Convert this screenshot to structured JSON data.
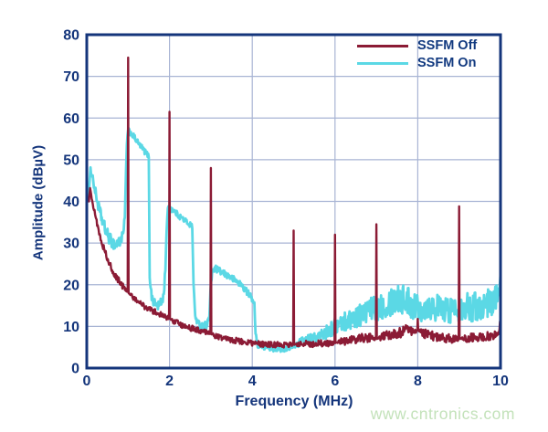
{
  "watermark": {
    "text": "www.cntronics.com",
    "color": "#C3E2BA"
  },
  "colors": {
    "frame": "#14357B",
    "grid": "#A8B4D4",
    "tick_text": "#14357B",
    "background": "#FFFFFF",
    "ssfm_off": "#8B1B35",
    "ssfm_on": "#5BD8E5"
  },
  "chart_data": {
    "type": "line",
    "title": "",
    "xlabel": "Frequency (MHz)",
    "ylabel": "Amplitude (dBµV)",
    "xlim": [
      0,
      10
    ],
    "ylim": [
      0,
      80
    ],
    "xticks": [
      0,
      2,
      4,
      6,
      8,
      10
    ],
    "yticks": [
      0,
      10,
      20,
      30,
      40,
      50,
      60,
      70,
      80
    ],
    "grid": true,
    "legend_position": "top-right",
    "series_note": "points are [frequency_MHz, amplitude_dBuV, noise_half_width_dB]; spikes at harmonics have noise 0",
    "series": [
      {
        "name": "SSFM Off",
        "color": "#8B1B35",
        "width": 2.4,
        "peaks": {
          "1": 74.5,
          "2": 61.5,
          "3": 48,
          "5": 33,
          "6": 32,
          "7": 34.5,
          "8": 11.8,
          "9": 38.8
        },
        "points": [
          [
            0.05,
            40,
            0.4
          ],
          [
            0.08,
            43.5,
            0.3
          ],
          [
            0.12,
            41,
            0.5
          ],
          [
            0.2,
            37,
            0.8
          ],
          [
            0.3,
            32.5,
            0.8
          ],
          [
            0.42,
            28.5,
            0.8
          ],
          [
            0.55,
            25,
            0.8
          ],
          [
            0.7,
            22,
            0.8
          ],
          [
            0.85,
            19.8,
            0.8
          ],
          [
            0.97,
            18.5,
            0.5
          ],
          [
            0.988,
            18.3,
            0
          ],
          [
            1.0,
            74.5,
            0
          ],
          [
            1.012,
            18,
            0
          ],
          [
            1.1,
            17.2,
            0.7
          ],
          [
            1.25,
            16,
            0.7
          ],
          [
            1.4,
            14.8,
            0.7
          ],
          [
            1.55,
            14,
            0.7
          ],
          [
            1.7,
            13.2,
            0.7
          ],
          [
            1.85,
            12.5,
            0.7
          ],
          [
            1.97,
            12,
            0.5
          ],
          [
            1.988,
            12,
            0
          ],
          [
            2.0,
            61.5,
            0
          ],
          [
            2.012,
            11.8,
            0
          ],
          [
            2.1,
            11.3,
            0.7
          ],
          [
            2.25,
            10.5,
            0.7
          ],
          [
            2.4,
            10,
            0.7
          ],
          [
            2.55,
            9.5,
            0.7
          ],
          [
            2.7,
            9,
            0.7
          ],
          [
            2.85,
            8.6,
            0.7
          ],
          [
            2.97,
            8.3,
            0.5
          ],
          [
            2.988,
            8.2,
            0
          ],
          [
            3.0,
            48,
            0
          ],
          [
            3.012,
            8.2,
            0
          ],
          [
            3.1,
            7.8,
            0.7
          ],
          [
            3.3,
            7.2,
            0.7
          ],
          [
            3.5,
            6.8,
            0.7
          ],
          [
            3.7,
            6.4,
            0.7
          ],
          [
            3.9,
            6.1,
            0.7
          ],
          [
            4.1,
            5.9,
            0.7
          ],
          [
            4.35,
            5.7,
            0.7
          ],
          [
            4.6,
            5.6,
            0.7
          ],
          [
            4.85,
            5.6,
            0.7
          ],
          [
            4.97,
            5.6,
            0.4
          ],
          [
            4.988,
            5.6,
            0
          ],
          [
            5.0,
            33,
            0
          ],
          [
            5.012,
            5.6,
            0
          ],
          [
            5.15,
            5.7,
            0.8
          ],
          [
            5.4,
            5.8,
            0.8
          ],
          [
            5.65,
            5.9,
            0.8
          ],
          [
            5.9,
            6,
            0.8
          ],
          [
            5.97,
            6,
            0.4
          ],
          [
            5.988,
            6,
            0
          ],
          [
            6.0,
            32,
            0
          ],
          [
            6.012,
            6,
            0
          ],
          [
            6.15,
            6.3,
            0.9
          ],
          [
            6.4,
            6.8,
            1.0
          ],
          [
            6.65,
            7.2,
            1.1
          ],
          [
            6.9,
            7.2,
            1.0
          ],
          [
            6.97,
            7,
            0.5
          ],
          [
            6.988,
            7,
            0
          ],
          [
            7.0,
            34.5,
            0
          ],
          [
            7.012,
            7,
            0
          ],
          [
            7.15,
            7.5,
            1.1
          ],
          [
            7.4,
            8,
            1.3
          ],
          [
            7.65,
            8.8,
            1.5
          ],
          [
            7.85,
            9,
            1.5
          ],
          [
            7.97,
            9,
            0.8
          ],
          [
            7.988,
            9,
            0
          ],
          [
            8.0,
            11.8,
            0
          ],
          [
            8.012,
            9,
            0
          ],
          [
            8.15,
            8.5,
            1.3
          ],
          [
            8.4,
            7.6,
            1.1
          ],
          [
            8.65,
            7.2,
            1.0
          ],
          [
            8.9,
            7,
            1.0
          ],
          [
            8.97,
            7,
            0.5
          ],
          [
            8.988,
            7,
            0
          ],
          [
            9.0,
            38.8,
            0
          ],
          [
            9.012,
            7,
            0
          ],
          [
            9.15,
            7.2,
            1.0
          ],
          [
            9.4,
            7.4,
            1.0
          ],
          [
            9.65,
            7.6,
            1.0
          ],
          [
            9.85,
            7.8,
            1.0
          ],
          [
            9.95,
            8.2,
            0.9
          ],
          [
            10.0,
            11.5,
            0.5
          ]
        ]
      },
      {
        "name": "SSFM On",
        "color": "#5BD8E5",
        "width": 2.8,
        "humps": {
          "1": 57,
          "2": 38.5,
          "3": 23.8
        },
        "points": [
          [
            0.05,
            42,
            1.0
          ],
          [
            0.09,
            47.5,
            0.7
          ],
          [
            0.13,
            46.5,
            0.8
          ],
          [
            0.2,
            42.5,
            1.3
          ],
          [
            0.3,
            38,
            1.4
          ],
          [
            0.4,
            34.5,
            1.5
          ],
          [
            0.5,
            32,
            1.5
          ],
          [
            0.6,
            30.3,
            1.5
          ],
          [
            0.7,
            29.6,
            1.5
          ],
          [
            0.8,
            30.4,
            1.4
          ],
          [
            0.88,
            32,
            1.2
          ],
          [
            0.92,
            36,
            0.9
          ],
          [
            0.95,
            47,
            0.7
          ],
          [
            0.97,
            54,
            0.6
          ],
          [
            1.0,
            57,
            0.7
          ],
          [
            1.08,
            56.3,
            0.7
          ],
          [
            1.16,
            55.2,
            0.7
          ],
          [
            1.24,
            54,
            0.7
          ],
          [
            1.32,
            53,
            0.7
          ],
          [
            1.4,
            52,
            0.7
          ],
          [
            1.47,
            51.2,
            0.6
          ],
          [
            1.5,
            50.8,
            0.4
          ],
          [
            1.52,
            22,
            0.6
          ],
          [
            1.57,
            17,
            1.2
          ],
          [
            1.64,
            15.5,
            1.2
          ],
          [
            1.72,
            15,
            1.2
          ],
          [
            1.8,
            15.6,
            1.2
          ],
          [
            1.86,
            17.5,
            1.2
          ],
          [
            1.9,
            24,
            0.9
          ],
          [
            1.93,
            33,
            0.8
          ],
          [
            1.96,
            38,
            0.7
          ],
          [
            2.0,
            38.5,
            0.7
          ],
          [
            2.1,
            37.8,
            0.7
          ],
          [
            2.2,
            36.8,
            0.7
          ],
          [
            2.3,
            36,
            0.7
          ],
          [
            2.4,
            35.2,
            0.7
          ],
          [
            2.5,
            34.4,
            0.7
          ],
          [
            2.55,
            34,
            0.5
          ],
          [
            2.58,
            20,
            0.7
          ],
          [
            2.62,
            12.5,
            1.0
          ],
          [
            2.7,
            10.5,
            1.0
          ],
          [
            2.8,
            10,
            1.0
          ],
          [
            2.9,
            10.4,
            1.0
          ],
          [
            2.96,
            12,
            0.9
          ],
          [
            2.99,
            18,
            0.8
          ],
          [
            3.03,
            23.5,
            0.8
          ],
          [
            3.12,
            23.8,
            0.8
          ],
          [
            3.25,
            23,
            0.8
          ],
          [
            3.4,
            22.2,
            0.8
          ],
          [
            3.55,
            21.3,
            0.8
          ],
          [
            3.7,
            20.3,
            0.8
          ],
          [
            3.82,
            19,
            0.8
          ],
          [
            3.93,
            17.6,
            0.8
          ],
          [
            4.02,
            16.2,
            0.6
          ],
          [
            4.05,
            15.8,
            0.4
          ],
          [
            4.08,
            8,
            0.6
          ],
          [
            4.13,
            5.6,
            0.7
          ],
          [
            4.3,
            5,
            0.7
          ],
          [
            4.5,
            4.7,
            0.7
          ],
          [
            4.7,
            4.6,
            0.7
          ],
          [
            4.9,
            4.8,
            0.7
          ],
          [
            5.05,
            5.6,
            0.8
          ],
          [
            5.2,
            6.5,
            1.0
          ],
          [
            5.4,
            7,
            1.1
          ],
          [
            5.6,
            7.6,
            1.3
          ],
          [
            5.8,
            8.6,
            1.6
          ],
          [
            6.0,
            10,
            2.0
          ],
          [
            6.2,
            11,
            2.3
          ],
          [
            6.4,
            12,
            2.5
          ],
          [
            6.6,
            12.8,
            2.8
          ],
          [
            6.8,
            13.6,
            3.0
          ],
          [
            7.0,
            14.5,
            3.2
          ],
          [
            7.2,
            15.5,
            3.5
          ],
          [
            7.4,
            16.5,
            3.8
          ],
          [
            7.55,
            17,
            4.0
          ],
          [
            7.7,
            16.2,
            3.8
          ],
          [
            7.9,
            15.2,
            3.6
          ],
          [
            8.1,
            14.6,
            3.4
          ],
          [
            8.3,
            14.9,
            3.4
          ],
          [
            8.5,
            14.3,
            3.3
          ],
          [
            8.7,
            13.9,
            3.2
          ],
          [
            8.9,
            14.3,
            3.3
          ],
          [
            9.1,
            14.9,
            3.4
          ],
          [
            9.3,
            14.6,
            3.4
          ],
          [
            9.5,
            15.1,
            3.5
          ],
          [
            9.7,
            15.6,
            3.5
          ],
          [
            9.85,
            16.2,
            3.4
          ],
          [
            9.95,
            18.5,
            2.5
          ],
          [
            10.0,
            22.5,
            1.0
          ]
        ]
      }
    ]
  }
}
